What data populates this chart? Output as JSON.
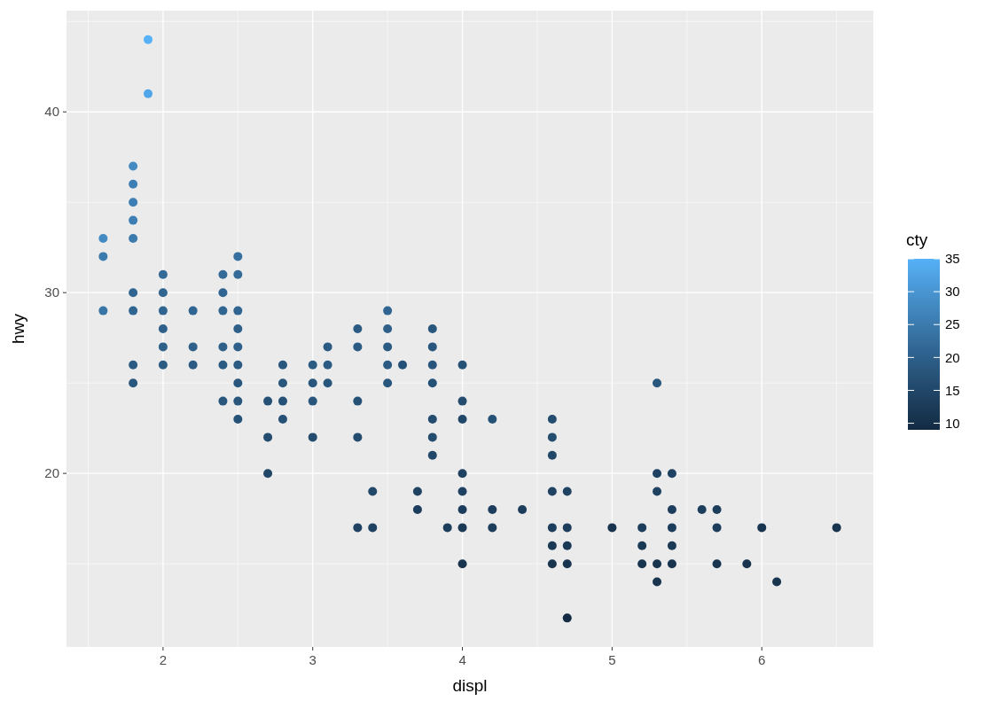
{
  "chart_data": {
    "type": "scatter",
    "xlabel": "displ",
    "ylabel": "hwy",
    "clabel": "cty",
    "xlim": [
      1.355,
      6.745
    ],
    "ylim": [
      10.4,
      45.6
    ],
    "xticks": [
      2,
      3,
      4,
      5,
      6
    ],
    "yticks": [
      20,
      30,
      40
    ],
    "clim": [
      9,
      35
    ],
    "cticks": [
      10,
      15,
      20,
      25,
      30,
      35
    ],
    "grid": true,
    "marker": "circle",
    "x": [
      1.6,
      1.6,
      1.6,
      1.8,
      1.8,
      1.8,
      1.8,
      1.8,
      1.8,
      1.8,
      1.8,
      1.8,
      1.9,
      1.9,
      2.0,
      2.0,
      2.0,
      2.0,
      2.0,
      2.0,
      2.2,
      2.2,
      2.2,
      2.4,
      2.4,
      2.4,
      2.4,
      2.4,
      2.4,
      2.5,
      2.5,
      2.5,
      2.5,
      2.5,
      2.5,
      2.5,
      2.5,
      2.5,
      2.7,
      2.7,
      2.7,
      2.8,
      2.8,
      2.8,
      2.8,
      3.0,
      3.0,
      3.0,
      3.0,
      3.1,
      3.1,
      3.1,
      3.3,
      3.3,
      3.3,
      3.3,
      3.3,
      3.4,
      3.4,
      3.5,
      3.5,
      3.5,
      3.5,
      3.5,
      3.6,
      3.7,
      3.7,
      3.8,
      3.8,
      3.8,
      3.8,
      3.8,
      3.8,
      3.8,
      3.9,
      4.0,
      4.0,
      4.0,
      4.0,
      4.0,
      4.0,
      4.0,
      4.0,
      4.2,
      4.2,
      4.2,
      4.4,
      4.6,
      4.6,
      4.6,
      4.6,
      4.6,
      4.6,
      4.6,
      4.7,
      4.7,
      4.7,
      4.7,
      4.7,
      5.0,
      5.2,
      5.2,
      5.2,
      5.3,
      5.3,
      5.3,
      5.3,
      5.3,
      5.4,
      5.4,
      5.4,
      5.4,
      5.4,
      5.6,
      5.7,
      5.7,
      5.7,
      5.9,
      6.0,
      6.1,
      6.5
    ],
    "values": [
      33,
      32,
      29,
      37,
      36,
      35,
      34,
      33,
      30,
      29,
      26,
      25,
      44,
      41,
      31,
      30,
      29,
      28,
      27,
      26,
      29,
      27,
      26,
      31,
      30,
      29,
      27,
      26,
      24,
      32,
      31,
      29,
      28,
      27,
      26,
      25,
      24,
      23,
      24,
      22,
      20,
      26,
      25,
      24,
      23,
      26,
      25,
      24,
      22,
      27,
      26,
      25,
      28,
      27,
      24,
      22,
      17,
      19,
      17,
      29,
      28,
      27,
      26,
      25,
      26,
      19,
      18,
      28,
      27,
      26,
      25,
      23,
      22,
      21,
      17,
      26,
      24,
      23,
      20,
      19,
      18,
      17,
      15,
      23,
      18,
      17,
      18,
      23,
      22,
      21,
      19,
      17,
      16,
      15,
      19,
      17,
      16,
      15,
      12,
      17,
      17,
      16,
      15,
      25,
      20,
      19,
      15,
      14,
      20,
      18,
      17,
      16,
      15,
      18,
      18,
      17,
      15,
      15,
      17,
      14,
      17
    ],
    "cvalues": [
      28,
      25,
      24,
      28,
      26,
      26,
      26,
      25,
      21,
      21,
      19,
      18,
      35,
      33,
      22,
      21,
      21,
      20,
      20,
      19,
      21,
      20,
      19,
      22,
      21,
      21,
      20,
      19,
      18,
      23,
      22,
      21,
      20,
      20,
      19,
      18,
      18,
      17,
      17,
      16,
      15,
      18,
      18,
      17,
      17,
      19,
      18,
      18,
      16,
      19,
      19,
      18,
      19,
      19,
      17,
      16,
      14,
      15,
      14,
      21,
      20,
      19,
      19,
      18,
      17,
      14,
      13,
      18,
      18,
      18,
      17,
      16,
      16,
      15,
      13,
      17,
      16,
      15,
      14,
      14,
      13,
      12,
      11,
      17,
      13,
      13,
      13,
      16,
      16,
      15,
      14,
      13,
      12,
      11,
      14,
      13,
      12,
      11,
      9,
      11,
      13,
      12,
      11,
      18,
      14,
      14,
      11,
      11,
      14,
      13,
      13,
      12,
      11,
      13,
      13,
      13,
      11,
      11,
      11,
      11,
      11
    ]
  }
}
